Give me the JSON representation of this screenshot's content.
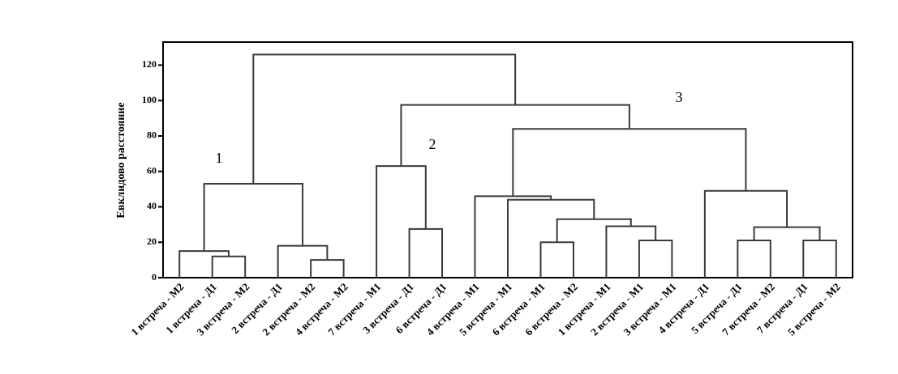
{
  "chart_data": {
    "type": "dendrogram",
    "y_label": "Евклидово расстояние",
    "categories": [
      "1 встреча - М2",
      "1 встреча - Д1",
      "3 встреча - М2",
      "2 встреча - Д1",
      "2 встреча - М2",
      "4 встреча - М2",
      "7 встреча - М1",
      "3 встреча - Д1",
      "6 встреча - Д1",
      "4 встреча - М1",
      "5 встреча - М1",
      "6 встреча - М1",
      "6 встреча - М2",
      "1 встреча - М1",
      "2 встреча - М1",
      "3 встреча - М1",
      "4 встреча - Д1",
      "5 встреча - Д1",
      "7 встреча - М2",
      "7 встреча - Д1",
      "5 встреча - М2"
    ],
    "ylim": [
      0,
      133
    ],
    "yticks": [
      0,
      20,
      40,
      60,
      80,
      100,
      120
    ],
    "color": "#3a3a3a",
    "annotations": [
      "1",
      "2",
      "3"
    ],
    "tree": {
      "height": 126,
      "children": [
        {
          "height": 53,
          "children": [
            {
              "height": 15,
              "children": [
                0,
                {
                  "height": 12,
                  "children": [
                    1,
                    2
                  ]
                }
              ]
            },
            {
              "height": 18,
              "children": [
                3,
                {
                  "height": 10,
                  "children": [
                    4,
                    5
                  ]
                }
              ]
            }
          ]
        },
        {
          "height": 97.5,
          "children": [
            {
              "height": 63,
              "children": [
                6,
                {
                  "height": 27.5,
                  "children": [
                    7,
                    8
                  ]
                }
              ]
            },
            {
              "height": 84,
              "children": [
                {
                  "height": 46,
                  "children": [
                    9,
                    {
                      "height": 44,
                      "children": [
                        10,
                        {
                          "height": 33,
                          "children": [
                            {
                              "height": 20,
                              "children": [
                                11,
                                12
                              ]
                            },
                            {
                              "height": 29,
                              "children": [
                                13,
                                {
                                  "height": 21,
                                  "children": [
                                    14,
                                    15
                                  ]
                                }
                              ]
                            }
                          ]
                        }
                      ]
                    }
                  ]
                },
                {
                  "height": 49,
                  "children": [
                    16,
                    {
                      "height": 28.5,
                      "children": [
                        {
                          "height": 21,
                          "children": [
                            17,
                            18
                          ]
                        },
                        {
                          "height": 21,
                          "children": [
                            19,
                            20
                          ]
                        }
                      ]
                    }
                  ]
                }
              ]
            }
          ]
        }
      ]
    }
  }
}
